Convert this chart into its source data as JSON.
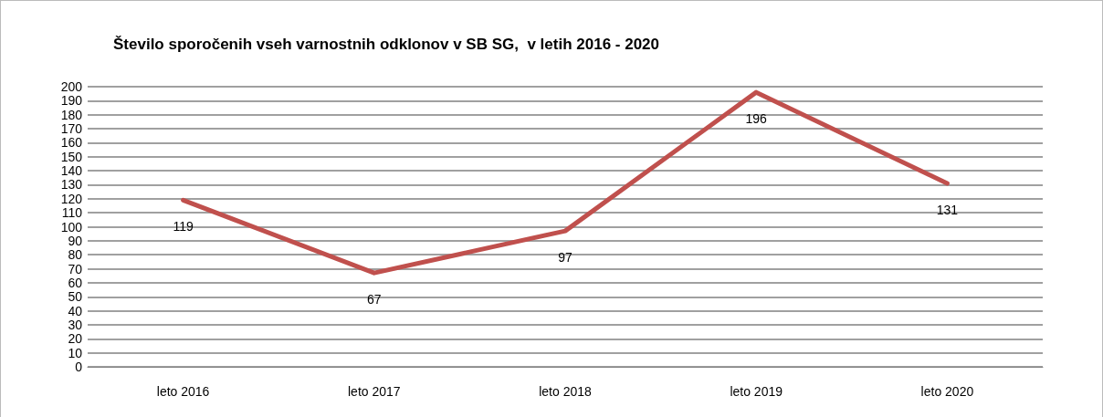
{
  "chart_data": {
    "type": "line",
    "title": "Število sporočenih vseh varnostnih odklonov v SB SG,  v letih 2016 - 2020",
    "categories": [
      "leto 2016",
      "leto 2017",
      "leto 2018",
      "leto 2019",
      "leto 2020"
    ],
    "series": [
      {
        "color": "#c0504d",
        "values": [
          119,
          67,
          97,
          196,
          131
        ]
      }
    ],
    "ylim": [
      0,
      200
    ],
    "yticks": [
      0,
      10,
      20,
      30,
      40,
      50,
      60,
      70,
      80,
      90,
      100,
      110,
      120,
      130,
      140,
      150,
      160,
      170,
      180,
      190,
      200
    ],
    "grid": "y",
    "data_labels": true,
    "marker": "none",
    "line_style": "solid"
  }
}
